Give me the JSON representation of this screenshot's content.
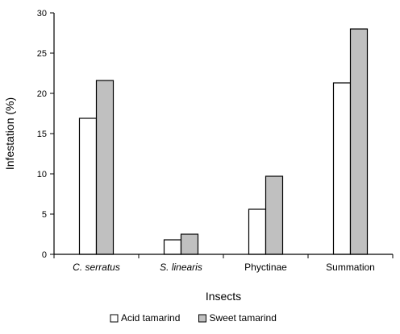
{
  "chart_data": {
    "type": "bar",
    "categories": [
      "C. serratus",
      "S. linearis",
      "Phyctinae",
      "Summation"
    ],
    "category_italic": [
      true,
      true,
      false,
      false
    ],
    "series": [
      {
        "name": "Acid tamarind",
        "values": [
          16.9,
          1.8,
          5.6,
          21.3
        ],
        "color": "#ffffff"
      },
      {
        "name": "Sweet tamarind",
        "values": [
          21.6,
          2.5,
          9.7,
          28.0
        ],
        "color": "#c0c0c0"
      }
    ],
    "title": "",
    "xlabel": "Insects",
    "ylabel": "Infestation (%)",
    "ylim": [
      0,
      30
    ],
    "yticks": [
      0,
      5,
      10,
      15,
      20,
      25,
      30
    ],
    "grid": false,
    "legend_position": "bottom"
  }
}
